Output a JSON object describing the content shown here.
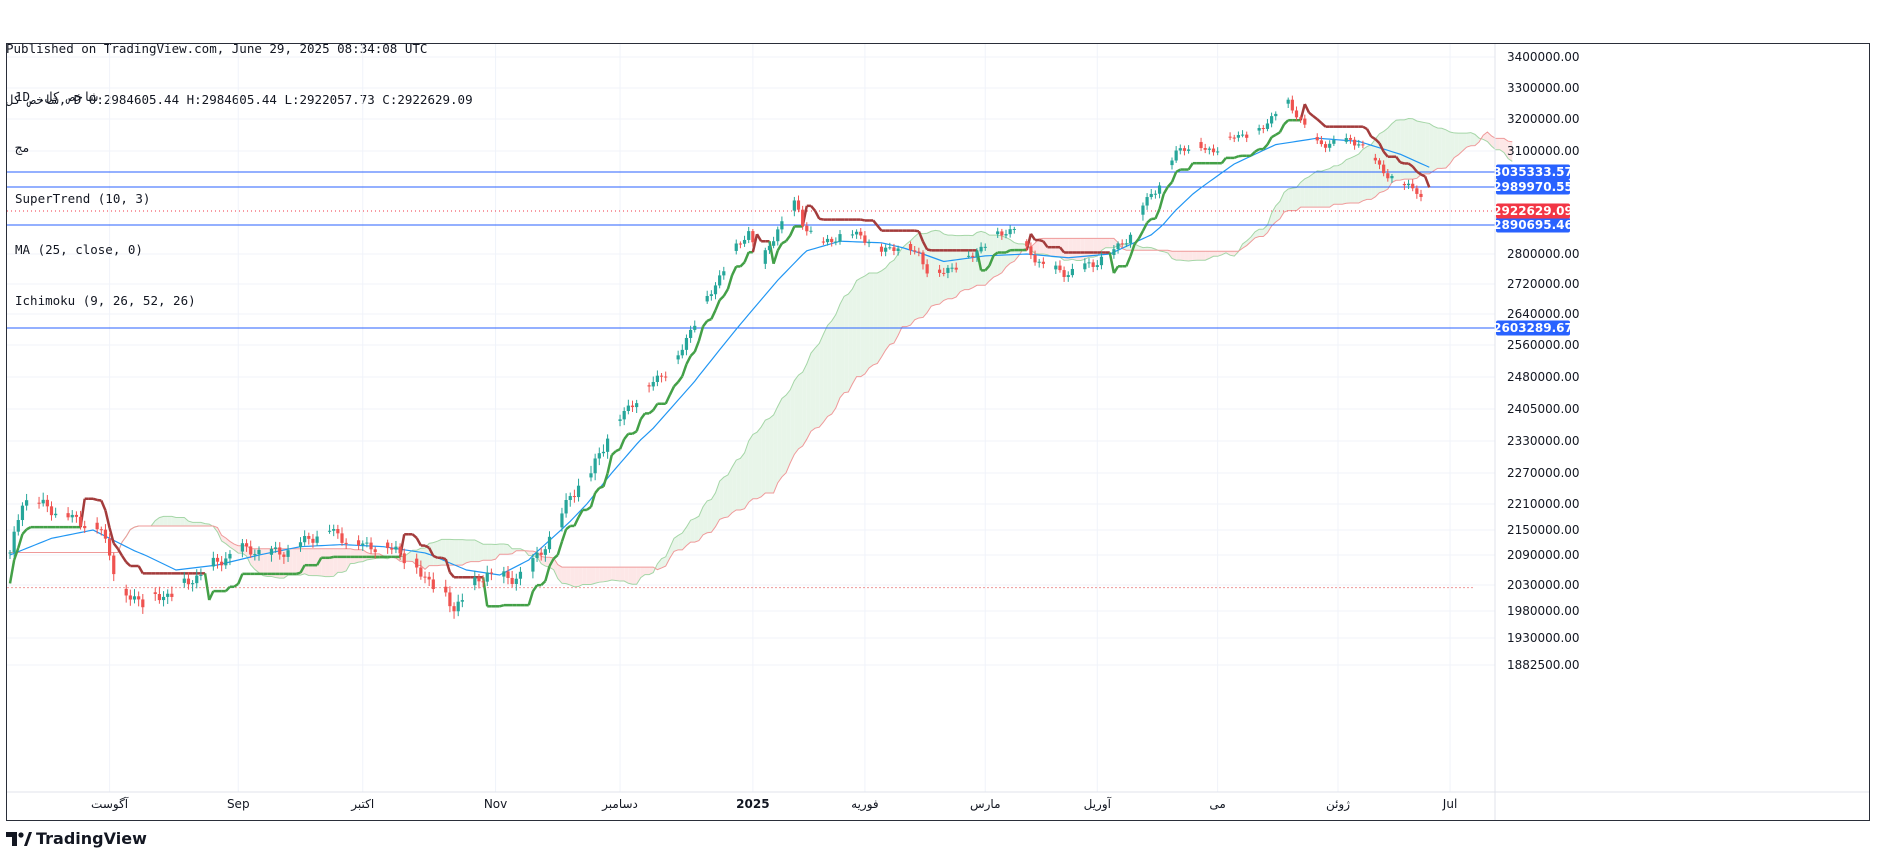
{
  "header": {
    "published": "Published on TradingView.com, June 29, 2025 08:34:08 UTC",
    "symbol_line": "شاخص کل, D O:2984605.44 H:2984605.44 L:2922057.73 C:2922629.09"
  },
  "legend": {
    "title": "1D ,شاخص کل",
    "subtitle": "مج",
    "indicators": [
      "SuperTrend (10, 3)",
      "MA (25, close, 0)",
      "Ichimoku (9, 26, 52, 26)"
    ]
  },
  "footer": {
    "brand": "TradingView"
  },
  "colors": {
    "up": "#26a69a",
    "down": "#ef5350",
    "st_up": "#43a047",
    "st_down": "#a33b3b",
    "ma": "#2196f3",
    "cloud_bull": "#e8f5e9",
    "cloud_bear": "#fde7e7",
    "level": "#2962ff",
    "last": "#f23645",
    "level_tag": "#2962ff"
  },
  "chart_data": {
    "type": "candlestick",
    "y_axis_ticks": [
      3400000,
      3300000,
      3200000,
      3100000,
      2800000,
      2720000,
      2640000,
      2560000,
      2480000,
      2405000,
      2330000,
      2270000,
      2210000,
      2150000,
      2090000,
      2030000,
      1980000,
      1930000,
      1882500
    ],
    "y_axis_labels": [
      "3400000.00",
      "3300000.00",
      "3200000.00",
      "3100000.00",
      "2800000.00",
      "2720000.00",
      "2640000.00",
      "2560000.00",
      "2480000.00",
      "2405000.00",
      "2330000.00",
      "2270000.00",
      "2210000.00",
      "2150000.00",
      "2090000.00",
      "2030000.00",
      "1980000.00",
      "1930000.00",
      "1882500.00"
    ],
    "x_axis_labels": [
      "آگوست",
      "Sep",
      "اکتبر",
      "Nov",
      "دسامبر",
      "2025",
      "فوریه",
      "مارس",
      "آوریل",
      "می",
      "ژوئن",
      "Jul"
    ],
    "x_axis_label_day": [
      24,
      55,
      85,
      117,
      147,
      179,
      206,
      235,
      262,
      291,
      320,
      347
    ],
    "horizontal_levels": [
      {
        "value": 3035333.57,
        "label": "3035333.57"
      },
      {
        "value": 2989970.55,
        "label": "2989970.55"
      },
      {
        "value": 2890695.46,
        "label": "2890695.46"
      },
      {
        "value": 2603289.67,
        "label": "2603289.67"
      }
    ],
    "last_price": {
      "value": 2922629.09,
      "label": "2922629.09"
    },
    "dotted_line": 2025000,
    "ohlc_open": 2984605.44,
    "ohlc_high": 2984605.44,
    "ohlc_low": 2922057.73,
    "ohlc_close": 2922629.09,
    "close_keypoints": [
      [
        0,
        2090000
      ],
      [
        3,
        2220000
      ],
      [
        6,
        2215000
      ],
      [
        12,
        2190000
      ],
      [
        17,
        2170000
      ],
      [
        22,
        2150000
      ],
      [
        27,
        2010000
      ],
      [
        32,
        2000000
      ],
      [
        38,
        2010000
      ],
      [
        43,
        2035000
      ],
      [
        50,
        2075000
      ],
      [
        56,
        2105000
      ],
      [
        62,
        2095000
      ],
      [
        67,
        2100000
      ],
      [
        72,
        2130000
      ],
      [
        77,
        2150000
      ],
      [
        82,
        2120000
      ],
      [
        88,
        2110000
      ],
      [
        93,
        2105000
      ],
      [
        98,
        2060000
      ],
      [
        103,
        2025000
      ],
      [
        107,
        1985000
      ],
      [
        110,
        2015000
      ],
      [
        115,
        2055000
      ],
      [
        120,
        2040000
      ],
      [
        125,
        2060000
      ],
      [
        128,
        2100000
      ],
      [
        132,
        2160000
      ],
      [
        135,
        2230000
      ],
      [
        140,
        2270000
      ],
      [
        145,
        2360000
      ],
      [
        150,
        2420000
      ],
      [
        155,
        2470000
      ],
      [
        160,
        2510000
      ],
      [
        165,
        2620000
      ],
      [
        170,
        2720000
      ],
      [
        175,
        2820000
      ],
      [
        178,
        2870000
      ],
      [
        181,
        2770000
      ],
      [
        185,
        2880000
      ],
      [
        189,
        2940000
      ],
      [
        192,
        2880000
      ],
      [
        196,
        2830000
      ],
      [
        200,
        2860000
      ],
      [
        205,
        2860000
      ],
      [
        210,
        2810000
      ],
      [
        215,
        2830000
      ],
      [
        219,
        2800000
      ],
      [
        222,
        2740000
      ],
      [
        226,
        2760000
      ],
      [
        230,
        2780000
      ],
      [
        234,
        2820000
      ],
      [
        238,
        2860000
      ],
      [
        242,
        2880000
      ],
      [
        245,
        2810000
      ],
      [
        250,
        2760000
      ],
      [
        255,
        2750000
      ],
      [
        260,
        2770000
      ],
      [
        265,
        2800000
      ],
      [
        270,
        2860000
      ],
      [
        273,
        2940000
      ],
      [
        277,
        3000000
      ],
      [
        281,
        3100000
      ],
      [
        285,
        3120000
      ],
      [
        290,
        3100000
      ],
      [
        295,
        3150000
      ],
      [
        300,
        3150000
      ],
      [
        305,
        3220000
      ],
      [
        308,
        3250000
      ],
      [
        311,
        3200000
      ],
      [
        315,
        3120000
      ],
      [
        320,
        3130000
      ],
      [
        325,
        3130000
      ],
      [
        330,
        3050000
      ],
      [
        335,
        3000000
      ],
      [
        339,
        2985000
      ],
      [
        342,
        2922629
      ]
    ],
    "ma_keypoints": [
      [
        0,
        2090000
      ],
      [
        10,
        2130000
      ],
      [
        20,
        2150000
      ],
      [
        30,
        2100000
      ],
      [
        40,
        2060000
      ],
      [
        50,
        2070000
      ],
      [
        60,
        2090000
      ],
      [
        70,
        2110000
      ],
      [
        80,
        2115000
      ],
      [
        90,
        2110000
      ],
      [
        100,
        2095000
      ],
      [
        110,
        2060000
      ],
      [
        118,
        2050000
      ],
      [
        125,
        2080000
      ],
      [
        135,
        2170000
      ],
      [
        145,
        2270000
      ],
      [
        155,
        2360000
      ],
      [
        165,
        2470000
      ],
      [
        175,
        2600000
      ],
      [
        185,
        2730000
      ],
      [
        192,
        2810000
      ],
      [
        200,
        2840000
      ],
      [
        210,
        2835000
      ],
      [
        215,
        2820000
      ],
      [
        225,
        2780000
      ],
      [
        235,
        2795000
      ],
      [
        245,
        2800000
      ],
      [
        255,
        2790000
      ],
      [
        265,
        2800000
      ],
      [
        275,
        2860000
      ],
      [
        285,
        2970000
      ],
      [
        295,
        3060000
      ],
      [
        305,
        3120000
      ],
      [
        315,
        3140000
      ],
      [
        325,
        3130000
      ],
      [
        335,
        3090000
      ],
      [
        342,
        3050000
      ]
    ]
  }
}
